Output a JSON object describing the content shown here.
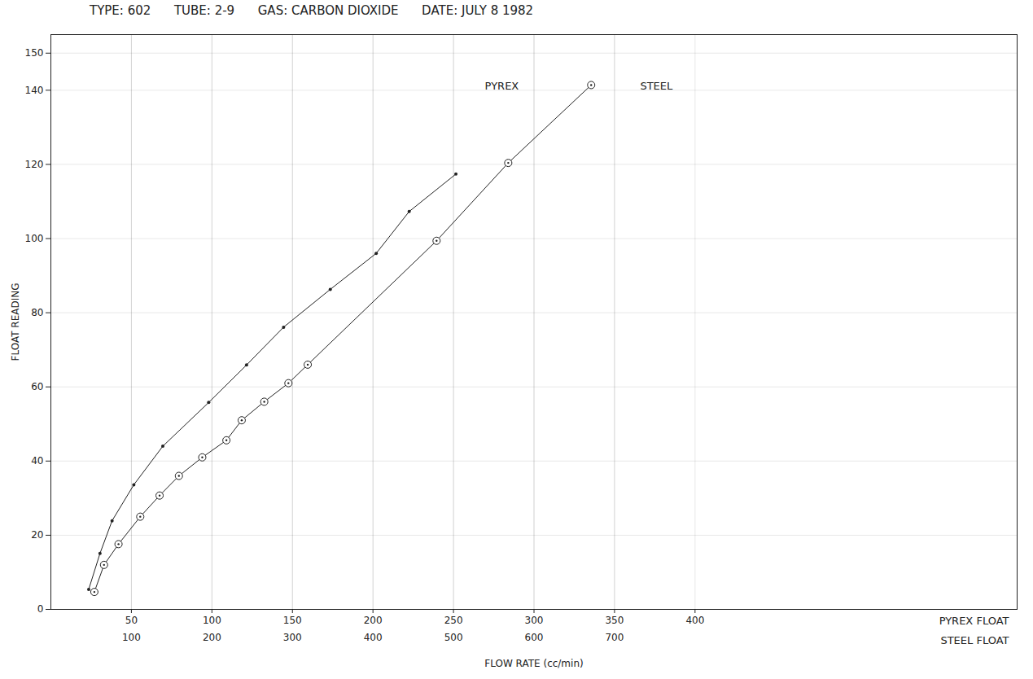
{
  "chart_data": {
    "type": "line",
    "title": "TYPE: 602      TUBE: 2-9      GAS: CARBON DIOXIDE      DATE: JULY 8 1982",
    "xlabel": "FLOW RATE (cc/min)",
    "ylabel": "FLOAT READING",
    "x_axis_name": "PYREX FLOAT",
    "x2_axis_name": "STEEL FLOAT",
    "xlim": [
      0,
      600
    ],
    "xticks": [
      50,
      100,
      150,
      200,
      250,
      300,
      350,
      400
    ],
    "x2lim": [
      0,
      1200
    ],
    "x2ticks": [
      100,
      200,
      300,
      400,
      500,
      600,
      700
    ],
    "ylim": [
      0,
      155
    ],
    "yticks": [
      0,
      20,
      40,
      60,
      80,
      100,
      120,
      140,
      150
    ],
    "grid": true,
    "series": [
      {
        "name": "PYREX",
        "axis": "x",
        "color": "#222222",
        "marker": "dot",
        "line_style": "solid",
        "x": [
          23.5,
          30.5,
          38,
          51.5,
          69.5,
          98,
          121.5,
          144.5,
          173.5,
          202,
          222.5,
          251.5
        ],
        "values": [
          5.4,
          15.1,
          23.9,
          33.6,
          44.0,
          55.8,
          65.9,
          76.1,
          86.3,
          96.0,
          107.3,
          117.4
        ]
      },
      {
        "name": "STEEL",
        "axis": "x2",
        "color": "#222222",
        "marker": "circle",
        "line_style": "solid",
        "x": [
          54,
          66,
          84,
          111,
          135,
          159,
          188,
          218,
          237,
          265,
          295,
          319,
          479,
          568,
          671
        ],
        "values": [
          4.7,
          12,
          17.6,
          25,
          30.7,
          36,
          41,
          45.6,
          51,
          56,
          61,
          66,
          99.4,
          120.4,
          141.4
        ]
      }
    ],
    "annotations": [
      {
        "text": "PYREX",
        "x": 280,
        "y": 141
      },
      {
        "text": "STEEL",
        "x": 376,
        "y": 141
      }
    ]
  }
}
